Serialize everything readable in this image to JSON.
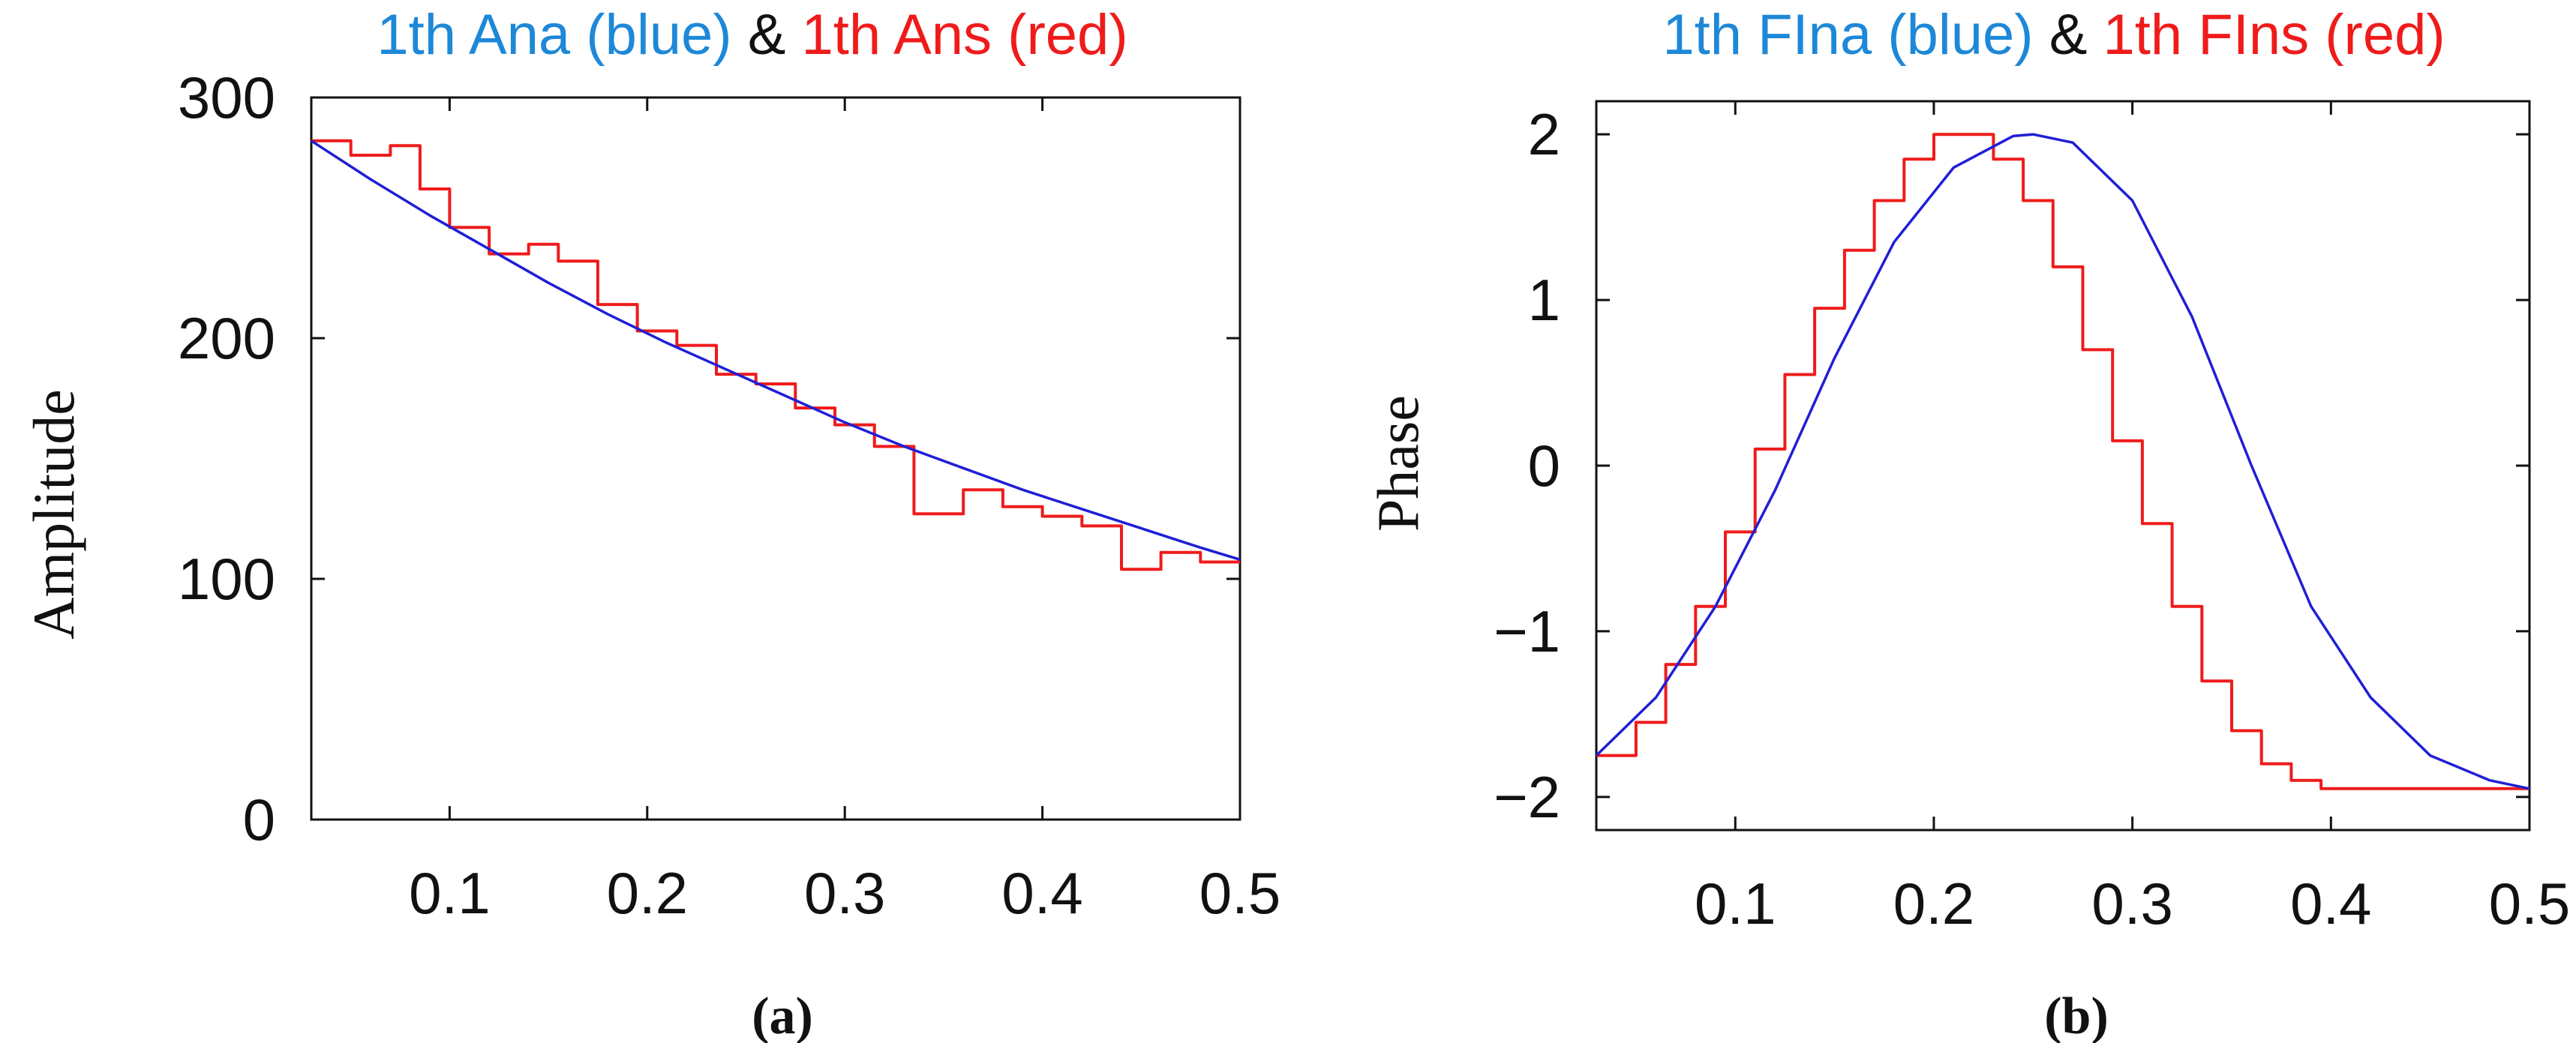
{
  "colors": {
    "analytic": "#1f1fd6",
    "numeric": "#ef1b1b",
    "title_blue": "#1e88d8",
    "title_red": "#ef1b1b",
    "axis": "#111111"
  },
  "chart_data": [
    {
      "type": "line",
      "panel_label": "(a)",
      "title_parts": {
        "blue": "1th Ana (blue)",
        "sep": " & ",
        "red": "1th Ans (red)"
      },
      "xlabel": "",
      "ylabel": "Amplitude",
      "xlim": [
        0.03,
        0.5
      ],
      "ylim": [
        0,
        300
      ],
      "xticks": [
        0.1,
        0.2,
        0.3,
        0.4,
        0.5
      ],
      "xtick_labels": [
        "0.1",
        "0.2",
        "0.3",
        "0.4",
        "0.5"
      ],
      "yticks": [
        0,
        100,
        200,
        300
      ],
      "ytick_labels": [
        "0",
        "100",
        "200",
        "300"
      ],
      "legend": "none",
      "series": [
        {
          "name": "1th Ana (blue)",
          "style": "smooth",
          "x": [
            0.03,
            0.06,
            0.09,
            0.12,
            0.15,
            0.18,
            0.21,
            0.24,
            0.27,
            0.3,
            0.33,
            0.36,
            0.39,
            0.42,
            0.45,
            0.48,
            0.5
          ],
          "y": [
            282,
            266,
            251,
            237,
            223,
            210,
            198,
            187,
            176,
            165,
            155,
            146,
            137,
            129,
            121,
            113,
            108
          ]
        },
        {
          "name": "1th Ans (red)",
          "style": "step",
          "x": [
            0.03,
            0.05,
            0.07,
            0.085,
            0.1,
            0.12,
            0.14,
            0.155,
            0.175,
            0.195,
            0.215,
            0.235,
            0.255,
            0.275,
            0.295,
            0.315,
            0.335,
            0.36,
            0.38,
            0.4,
            0.42,
            0.44,
            0.46,
            0.48,
            0.5
          ],
          "y": [
            282,
            276,
            280,
            262,
            246,
            235,
            239,
            232,
            214,
            203,
            197,
            185,
            181,
            171,
            164,
            155,
            127,
            137,
            130,
            126,
            122,
            104,
            111,
            107,
            107
          ]
        }
      ]
    },
    {
      "type": "line",
      "panel_label": "(b)",
      "title_parts": {
        "blue": "1th FIna (blue)",
        "sep": " & ",
        "red": "1th FIns (red)"
      },
      "xlabel": "",
      "ylabel": "Phase",
      "xlim": [
        0.03,
        0.5
      ],
      "ylim": [
        -2.2,
        2.2
      ],
      "xticks": [
        0.1,
        0.2,
        0.3,
        0.4,
        0.5
      ],
      "xtick_labels": [
        "0.1",
        "0.2",
        "0.3",
        "0.4",
        "0.5"
      ],
      "yticks": [
        2,
        1,
        0,
        -1,
        -2
      ],
      "ytick_labels": [
        "2",
        "1",
        "0",
        "−1",
        "−2"
      ],
      "legend": "none",
      "series": [
        {
          "name": "1th FIna (blue)",
          "style": "smooth",
          "x": [
            0.03,
            0.06,
            0.09,
            0.12,
            0.15,
            0.18,
            0.21,
            0.24,
            0.25,
            0.27,
            0.3,
            0.33,
            0.36,
            0.39,
            0.42,
            0.45,
            0.48,
            0.5
          ],
          "y": [
            -1.75,
            -1.4,
            -0.85,
            -0.15,
            0.65,
            1.35,
            1.8,
            1.99,
            2.0,
            1.95,
            1.6,
            0.9,
            0.0,
            -0.85,
            -1.4,
            -1.75,
            -1.9,
            -1.95
          ]
        },
        {
          "name": "1th FIns (red)",
          "style": "step",
          "x": [
            0.03,
            0.05,
            0.065,
            0.08,
            0.095,
            0.11,
            0.125,
            0.14,
            0.155,
            0.17,
            0.185,
            0.2,
            0.215,
            0.23,
            0.245,
            0.26,
            0.275,
            0.29,
            0.305,
            0.32,
            0.335,
            0.35,
            0.365,
            0.38,
            0.395,
            0.41,
            0.425,
            0.44,
            0.455,
            0.47,
            0.485,
            0.5
          ],
          "y": [
            -1.75,
            -1.55,
            -1.2,
            -0.85,
            -0.4,
            0.1,
            0.55,
            0.95,
            1.3,
            1.6,
            1.85,
            2.0,
            2.0,
            1.85,
            1.6,
            1.2,
            0.7,
            0.15,
            -0.35,
            -0.85,
            -1.3,
            -1.6,
            -1.8,
            -1.9,
            -1.95,
            -1.95,
            -1.95,
            -1.95,
            -1.95,
            -1.95,
            -1.95,
            -1.95
          ]
        }
      ]
    }
  ]
}
